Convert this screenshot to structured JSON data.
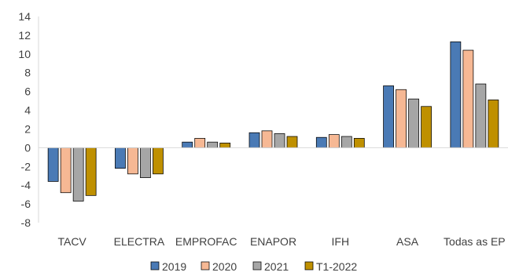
{
  "chart_data": {
    "type": "bar",
    "title": "",
    "xlabel": "",
    "ylabel": "",
    "ylim": [
      -8,
      14
    ],
    "yticks": [
      -8,
      -6,
      -4,
      -2,
      0,
      2,
      4,
      6,
      8,
      10,
      12,
      14
    ],
    "grid": false,
    "legend_position": "bottom",
    "categories": [
      "TACV",
      "ELECTRA",
      "EMPROFAC",
      "ENAPOR",
      "IFH",
      "ASA",
      "Todas as EP"
    ],
    "series": [
      {
        "name": "2019",
        "color": "#4a7ab5",
        "values": [
          -3.6,
          -2.2,
          0.6,
          1.6,
          1.1,
          6.6,
          11.3
        ]
      },
      {
        "name": "2020",
        "color": "#f6b894",
        "values": [
          -4.8,
          -2.8,
          1.0,
          1.8,
          1.4,
          6.2,
          10.4
        ]
      },
      {
        "name": "2021",
        "color": "#a6a6a6",
        "values": [
          -5.7,
          -3.2,
          0.6,
          1.5,
          1.2,
          5.2,
          6.8
        ]
      },
      {
        "name": "T1-2022",
        "color": "#bf9000",
        "values": [
          -5.1,
          -2.8,
          0.5,
          1.2,
          1.0,
          4.4,
          5.1
        ]
      }
    ]
  }
}
